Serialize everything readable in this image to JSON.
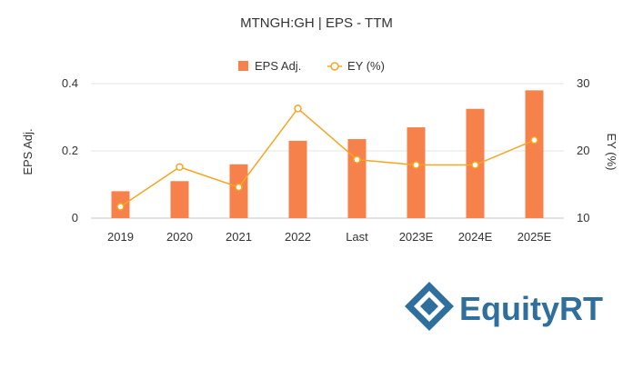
{
  "chart_data": {
    "type": "bar",
    "title": "MTNGH:GH | EPS - TTM",
    "categories": [
      "2019",
      "2020",
      "2021",
      "2022",
      "Last",
      "2023E",
      "2024E",
      "2025E"
    ],
    "series": [
      {
        "name": "EPS Adj.",
        "type": "bar",
        "axis": "left",
        "color": "#f7814a",
        "values": [
          0.08,
          0.11,
          0.16,
          0.23,
          0.235,
          0.27,
          0.325,
          0.38
        ]
      },
      {
        "name": "EY (%)",
        "type": "line",
        "axis": "right",
        "color": "#f5a623",
        "values": [
          11.7,
          17.6,
          14.6,
          26.3,
          18.7,
          17.9,
          17.9,
          21.6
        ]
      }
    ],
    "ylabel": "EPS Adj.",
    "ylabel_right": "EY (%)",
    "ylim": [
      0,
      0.4
    ],
    "yticks": [
      "0",
      "0.2",
      "0.4"
    ],
    "ylim_right": [
      10,
      30
    ],
    "yticks_right": [
      "10",
      "20",
      "30"
    ],
    "grid": true,
    "legend_position": "top"
  },
  "logo": {
    "text": "EquityRT",
    "color": "#2e6f9e"
  }
}
